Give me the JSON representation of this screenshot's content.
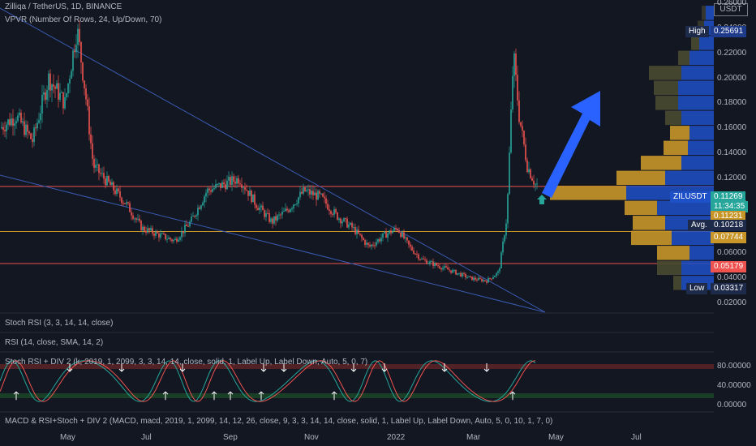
{
  "header": {
    "title": "Zilliqa / TetherUS, 1D, BINANCE",
    "indicator": "VPVR (Number Of Rows, 24, Up/Down, 70)",
    "currency": "USDT"
  },
  "panels": {
    "stoch_rsi": "Stoch RSI (3, 3, 14, 14, close)",
    "rsi": "RSI (14, close, SMA, 14, 2)",
    "stoch_div": "Stoch RSI + DIV 2 (k, 2019, 1, 2099, 3, 3, 14, 14, close, solid, 1, Label Up, Label Down, Auto, 5, 0, 7)",
    "macd": "MACD & RSI+Stoch + DIV 2 (MACD, macd, 2019, 1, 2099, 14, 12, 26, close, 9, 3, 3, 14, 14, close, solid, 1, Label Up, Label Down, Auto, 5, 0, 10, 1, 7, 0)"
  },
  "price_axis": {
    "ticks": [
      "0.26000",
      "0.24000",
      "0.22000",
      "0.20000",
      "0.18000",
      "0.16000",
      "0.14000",
      "0.12000",
      "0.10000",
      "0.08000",
      "0.06000",
      "0.04000",
      "0.02000"
    ]
  },
  "osc_axis": {
    "ticks": [
      "80.00000",
      "40.00000",
      "0.00000"
    ]
  },
  "time_axis": {
    "ticks": [
      "May",
      "Jul",
      "Sep",
      "Nov",
      "2022",
      "Mar",
      "May",
      "Jul"
    ]
  },
  "tags": {
    "high_label": "High",
    "high_value": "0.25691",
    "symbol": "ZILUSDT",
    "last": "0.11269",
    "countdown": "11:34:35",
    "level_1": "0.11231",
    "avg_label": "Avg.",
    "avg_value": "0.10218",
    "level_2": "0.07744",
    "level_3": "0.05179",
    "low_label": "Low",
    "low_value": "0.03317"
  },
  "colors": {
    "background": "#131722",
    "up": "#26a69a",
    "down": "#ef5350",
    "vp_up": "#1e50c8",
    "vp_down": "#c89628",
    "arrow": "#2962ff",
    "trendline": "#3a5ab0"
  },
  "chart_data": {
    "type": "candlestick",
    "symbol": "ZILUSDT",
    "interval": "1D",
    "ylim": [
      0.02,
      0.26
    ],
    "x": [
      "May",
      "Jul",
      "Sep",
      "Nov",
      "2022",
      "Mar"
    ],
    "close": [
      0.12,
      0.07,
      0.12,
      0.1,
      0.05,
      0.11
    ],
    "high": 0.25691,
    "low": 0.03317,
    "last": 0.11269,
    "levels": [
      0.11231,
      0.07744,
      0.05179
    ],
    "vpvr_avg": 0.10218,
    "oscillator_levels": [
      80,
      40,
      0
    ]
  }
}
